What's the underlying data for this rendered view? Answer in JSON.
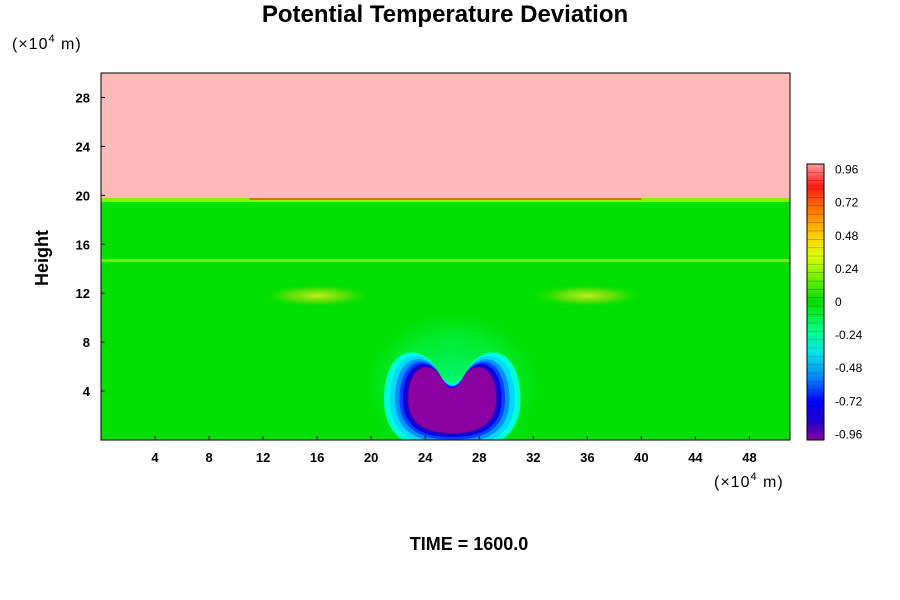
{
  "chart_data": {
    "type": "heatmap",
    "title": "Potential Temperature Deviation",
    "xlabel": "",
    "ylabel": "Height",
    "x_unit": {
      "prefix": "(×10",
      "exp": "4",
      "suffix": " m)"
    },
    "y_unit": {
      "prefix": "(×10",
      "exp": "4",
      "suffix": " m)"
    },
    "xlim": [
      0,
      51
    ],
    "ylim": [
      0,
      30
    ],
    "x_ticks": [
      4,
      8,
      12,
      16,
      20,
      24,
      28,
      32,
      36,
      40,
      44,
      48
    ],
    "y_ticks": [
      4,
      8,
      12,
      16,
      20,
      24,
      28
    ],
    "colorbar": {
      "range": [
        -1.0,
        1.0
      ],
      "ticks": [
        "0.96",
        "0.72",
        "0.48",
        "0.24",
        "0",
        "-0.24",
        "-0.48",
        "-0.72",
        "-0.96"
      ],
      "tick_values": [
        0.96,
        0.72,
        0.48,
        0.24,
        0,
        -0.24,
        -0.48,
        -0.72,
        -0.96
      ],
      "levels": 33
    },
    "field_features": [
      {
        "feature": "upper layer",
        "y_from": 19.7,
        "y_to": 30,
        "value": 1.0
      },
      {
        "feature": "interface line",
        "y": 19.7,
        "value": 0.7
      },
      {
        "feature": "weak line",
        "y": 14.7,
        "value": 0.15
      },
      {
        "feature": "left lobe",
        "x": 16,
        "y": 11.8,
        "value": 0.24
      },
      {
        "feature": "right lobe",
        "x": 36,
        "y": 11.8,
        "value": 0.24
      },
      {
        "feature": "cold bubble",
        "x": 26,
        "y": 3.5,
        "value": -0.96
      }
    ],
    "footer": "TIME = 1600.0"
  }
}
